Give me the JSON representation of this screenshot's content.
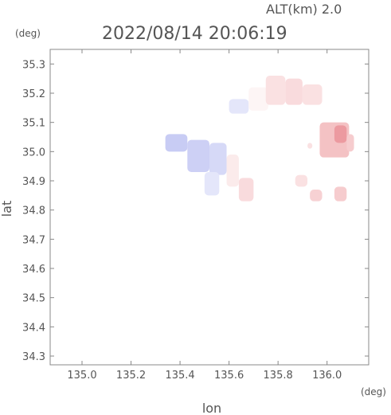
{
  "chart_data": {
    "type": "heatmap",
    "title": "2022/08/14 20:06:19",
    "altitude_label": "ALT(km) 2.0",
    "xlabel": "lon",
    "ylabel": "lat",
    "x_unit": "(deg)",
    "y_unit": "(deg)",
    "xlim": [
      134.87,
      136.17
    ],
    "ylim": [
      34.27,
      35.35
    ],
    "x_ticks": [
      135.0,
      135.2,
      135.4,
      135.6,
      135.8,
      136.0
    ],
    "x_tick_labels": [
      "135.0",
      "135.2",
      "135.4",
      "135.6",
      "135.8",
      "136.0"
    ],
    "y_ticks": [
      34.3,
      34.4,
      34.5,
      34.6,
      34.7,
      34.8,
      34.9,
      35.0,
      35.1,
      35.2,
      35.3
    ],
    "y_tick_labels": [
      "34.3",
      "34.4",
      "34.5",
      "34.6",
      "34.7",
      "34.8",
      "34.9",
      "35.0",
      "35.1",
      "35.2",
      "35.3"
    ],
    "grid": false,
    "colors": {
      "negative": "#c8ccf4",
      "neutral": "#ffffff",
      "positive": "#f4c2c4",
      "strong_positive": "#ec9aa0",
      "axis": "#888888",
      "text": "#555555"
    },
    "regions": [
      {
        "lon": [
          135.34,
          135.43
        ],
        "lat": [
          35.0,
          35.06
        ],
        "value": -0.6
      },
      {
        "lon": [
          135.43,
          135.52
        ],
        "lat": [
          34.93,
          35.04
        ],
        "value": -0.55
      },
      {
        "lon": [
          135.52,
          135.59
        ],
        "lat": [
          34.92,
          35.03
        ],
        "value": -0.45
      },
      {
        "lon": [
          135.5,
          135.56
        ],
        "lat": [
          34.85,
          34.93
        ],
        "value": -0.3
      },
      {
        "lon": [
          135.59,
          135.64
        ],
        "lat": [
          34.88,
          34.99
        ],
        "value": 0.2
      },
      {
        "lon": [
          135.64,
          135.7
        ],
        "lat": [
          34.83,
          34.91
        ],
        "value": 0.35
      },
      {
        "lon": [
          135.6,
          135.68
        ],
        "lat": [
          35.13,
          35.18
        ],
        "value": -0.3
      },
      {
        "lon": [
          135.68,
          135.76
        ],
        "lat": [
          35.14,
          35.22
        ],
        "value": 0.1
      },
      {
        "lon": [
          135.75,
          135.83
        ],
        "lat": [
          35.16,
          35.26
        ],
        "value": 0.3
      },
      {
        "lon": [
          135.83,
          135.9
        ],
        "lat": [
          35.16,
          35.25
        ],
        "value": 0.35
      },
      {
        "lon": [
          135.9,
          135.98
        ],
        "lat": [
          35.16,
          35.23
        ],
        "value": 0.3
      },
      {
        "lon": [
          135.97,
          136.09
        ],
        "lat": [
          34.98,
          35.1
        ],
        "value": 0.6
      },
      {
        "lon": [
          136.03,
          136.08
        ],
        "lat": [
          35.03,
          35.09
        ],
        "value": 0.9
      },
      {
        "lon": [
          136.08,
          136.11
        ],
        "lat": [
          35.0,
          35.06
        ],
        "value": 0.5
      },
      {
        "lon": [
          135.93,
          135.98
        ],
        "lat": [
          34.83,
          34.87
        ],
        "value": 0.45
      },
      {
        "lon": [
          136.03,
          136.08
        ],
        "lat": [
          34.83,
          34.88
        ],
        "value": 0.5
      },
      {
        "lon": [
          135.87,
          135.92
        ],
        "lat": [
          34.88,
          34.92
        ],
        "value": 0.3
      },
      {
        "lon": [
          135.92,
          135.94
        ],
        "lat": [
          35.01,
          35.03
        ],
        "value": 0.3
      }
    ]
  }
}
